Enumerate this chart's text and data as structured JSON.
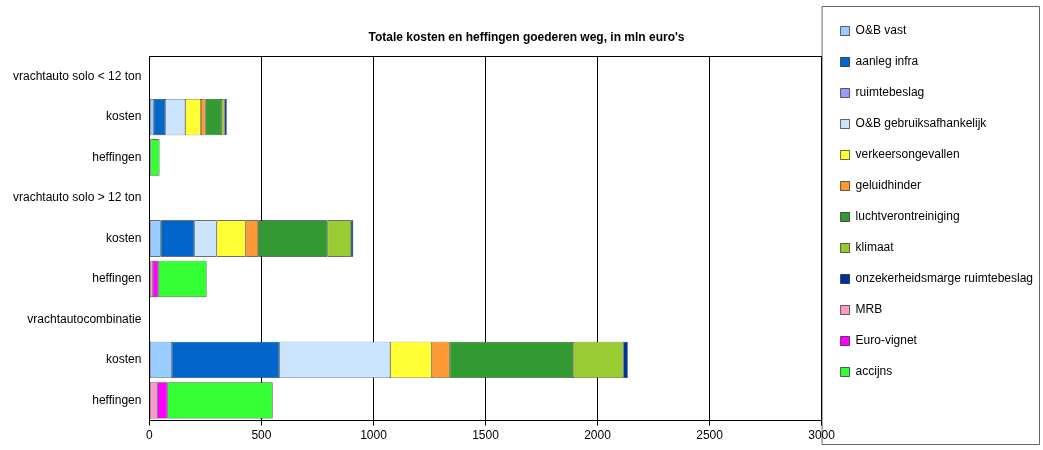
{
  "chart_data": {
    "type": "bar",
    "orientation": "horizontal",
    "stacked": true,
    "title": "Totale kosten en heffingen goederen weg, in mln euro's",
    "categories": [
      "vrachtauto solo < 12 ton",
      "kosten",
      "heffingen",
      "vrachtauto solo > 12 ton",
      "kosten",
      "heffingen",
      "vrachtautocombinatie",
      "kosten",
      "heffingen"
    ],
    "series": [
      {
        "name": "O&B vast",
        "color": "#99ccff",
        "values": [
          null,
          20,
          null,
          null,
          50,
          null,
          null,
          100,
          null
        ]
      },
      {
        "name": "aanleg infra",
        "color": "#0066cc",
        "values": [
          null,
          50,
          null,
          null,
          150,
          null,
          null,
          480,
          null
        ]
      },
      {
        "name": "ruimtebeslag",
        "color": "#9999ff",
        "values": [
          null,
          null,
          null,
          null,
          null,
          null,
          null,
          null,
          null
        ]
      },
      {
        "name": "O&B gebruiksafhankelijk",
        "color": "#cce5ff",
        "values": [
          null,
          90,
          null,
          null,
          100,
          null,
          null,
          495,
          null
        ]
      },
      {
        "name": "verkeersongevallen",
        "color": "#ffff33",
        "values": [
          null,
          70,
          null,
          null,
          130,
          null,
          null,
          185,
          null
        ]
      },
      {
        "name": "geluidhinder",
        "color": "#ff9933",
        "values": [
          null,
          20,
          null,
          null,
          55,
          null,
          null,
          80,
          null
        ]
      },
      {
        "name": "luchtverontreiniging",
        "color": "#339933",
        "values": [
          null,
          70,
          null,
          null,
          310,
          null,
          null,
          550,
          null
        ]
      },
      {
        "name": "klimaat",
        "color": "#99cc33",
        "values": [
          null,
          15,
          null,
          null,
          105,
          null,
          null,
          225,
          null
        ]
      },
      {
        "name": "onzekerheidsmarge ruimtebeslag",
        "color": "#003399",
        "values": [
          null,
          10,
          null,
          null,
          10,
          null,
          null,
          20,
          null
        ]
      },
      {
        "name": "MRB",
        "color": "#ff99cc",
        "values": [
          null,
          null,
          5,
          null,
          null,
          15,
          null,
          null,
          35
        ]
      },
      {
        "name": "Euro-vignet",
        "color": "#ff00ff",
        "values": [
          null,
          null,
          0,
          null,
          null,
          25,
          null,
          null,
          45
        ]
      },
      {
        "name": "accijns",
        "color": "#33ff33",
        "values": [
          null,
          null,
          40,
          null,
          null,
          215,
          null,
          null,
          470
        ]
      }
    ],
    "xlim": [
      0,
      3000
    ],
    "xticks": [
      0,
      500,
      1000,
      1500,
      2000,
      2500,
      3000
    ],
    "grid": "x",
    "legend": "right"
  }
}
